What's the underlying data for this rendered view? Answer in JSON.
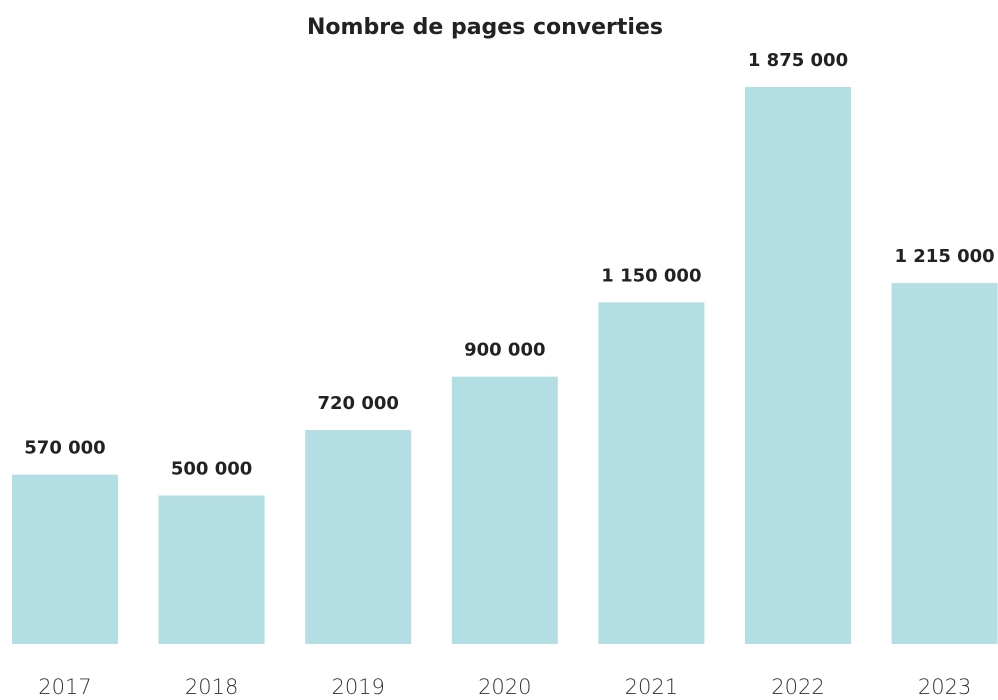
{
  "chart_data": {
    "type": "bar",
    "title": "Nombre de pages converties",
    "categories": [
      "2017",
      "2018",
      "2019",
      "2020",
      "2021",
      "2022",
      "2023"
    ],
    "values": [
      570000,
      500000,
      720000,
      900000,
      1150000,
      1875000,
      1215000
    ],
    "value_labels": [
      "570 000",
      "500 000",
      "720 000",
      "900 000",
      "1 150 000",
      "1 875 000",
      "1 215 000"
    ],
    "color": "#b3dfe4"
  }
}
